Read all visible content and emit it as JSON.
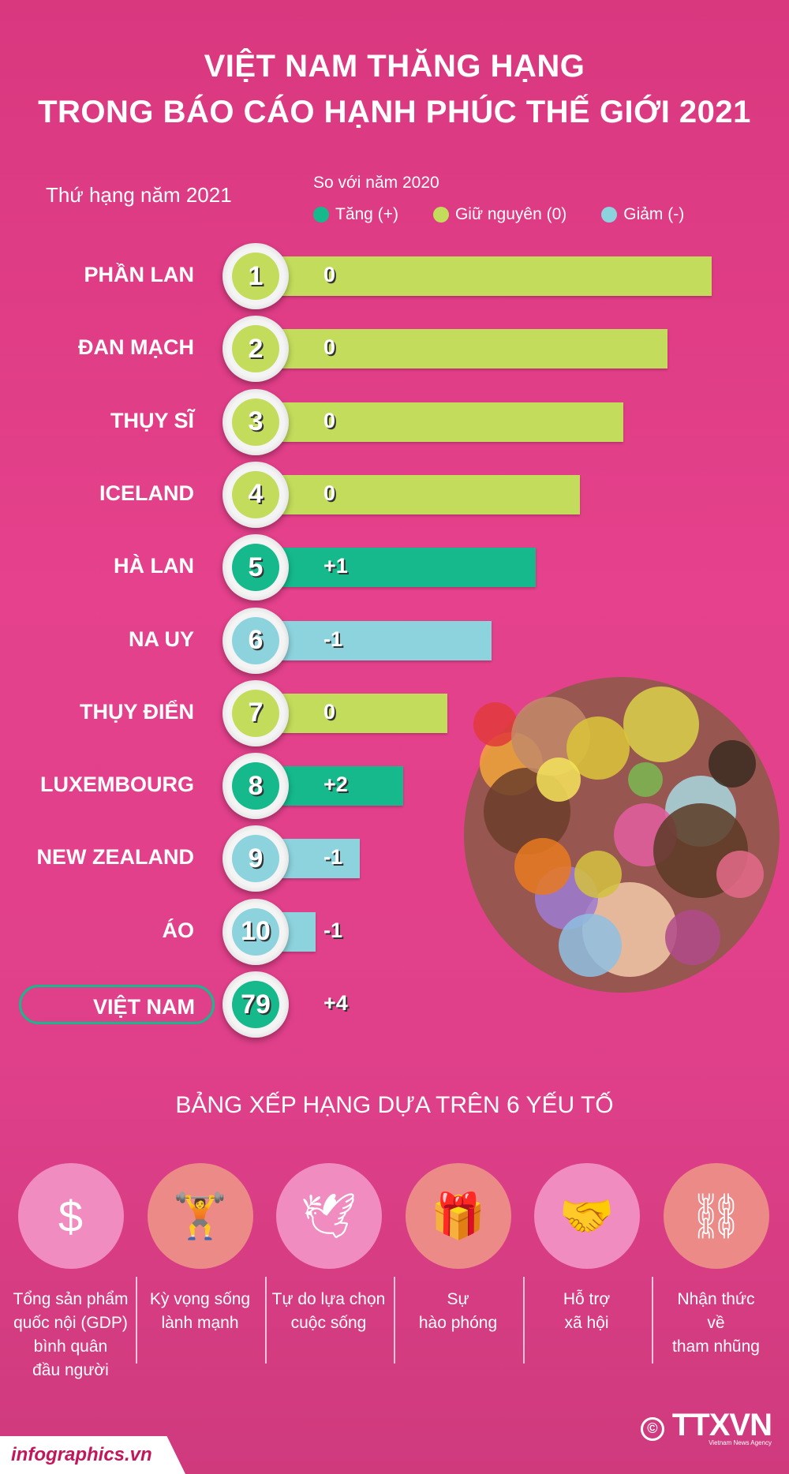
{
  "title": {
    "line1": "VIỆT NAM THĂNG HẠNG",
    "line2": "TRONG BÁO CÁO HẠNH PHÚC THẾ GIỚI 2021"
  },
  "rank_label": "Thứ hạng năm 2021",
  "compare_label": "So với năm 2020",
  "legend": [
    {
      "label": "Tăng (+)",
      "color": "#15b98c"
    },
    {
      "label": "Giữ nguyên (0)",
      "color": "#c4dc5c"
    },
    {
      "label": "Giảm (-)",
      "color": "#8dd3dd"
    }
  ],
  "chart_data": {
    "type": "bar",
    "title": "Thứ hạng năm 2021",
    "categories": [
      "PHẦN LAN",
      "ĐAN MẠCH",
      "THỤY SĨ",
      "ICELAND",
      "HÀ LAN",
      "NA UY",
      "THỤY ĐIỂN",
      "LUXEMBOURG",
      "NEW ZEALAND",
      "ÁO",
      "VIỆT NAM"
    ],
    "ranks": [
      "1",
      "2",
      "3",
      "4",
      "5",
      "6",
      "7",
      "8",
      "9",
      "10",
      "79"
    ],
    "changes": [
      "0",
      "0",
      "0",
      "0",
      "+1",
      "-1",
      "0",
      "+2",
      "-1",
      "-1",
      "+4"
    ],
    "status": [
      "same",
      "same",
      "same",
      "same",
      "up",
      "down",
      "same",
      "up",
      "down",
      "down",
      "up"
    ]
  },
  "factors_title": "BẢNG XẾP HẠNG DỰA TRÊN 6 YẾU TỐ",
  "factors": [
    {
      "icon": "gdp-icon",
      "lines": [
        "Tổng sản phẩm",
        "quốc nội (GDP)",
        "bình quân",
        "đầu người"
      ]
    },
    {
      "icon": "weightlifter-icon",
      "lines": [
        "Kỳ vọng sống",
        "lành mạnh"
      ]
    },
    {
      "icon": "dove-hands-icon",
      "lines": [
        "Tự do lựa chọn",
        "cuộc sống"
      ]
    },
    {
      "icon": "gift-hand-icon",
      "lines": [
        "Sự",
        "hào phóng"
      ]
    },
    {
      "icon": "helping-hands-icon",
      "lines": [
        "Hỗ trợ",
        "xã hội"
      ]
    },
    {
      "icon": "bribe-handcuff-icon",
      "lines": [
        "Nhận thức",
        "về",
        "tham nhũng"
      ]
    }
  ],
  "footer": {
    "site": "infographics.vn",
    "copyright": "©",
    "logo": "TTXVN",
    "logo_sub": "Vietnam News Agency"
  }
}
